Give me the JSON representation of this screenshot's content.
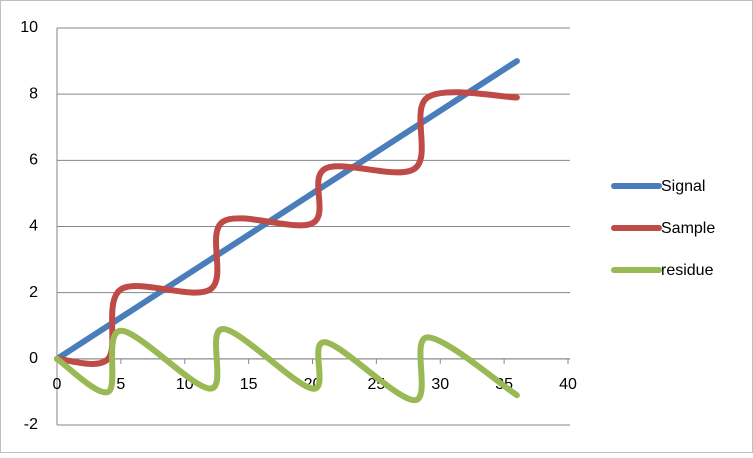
{
  "chart_data": {
    "type": "line",
    "smooth": true,
    "x": [
      0,
      4,
      5,
      12,
      13,
      20,
      21,
      28,
      29,
      36
    ],
    "series": [
      {
        "name": "Signal",
        "color": "#4a7ebb",
        "values": [
          0,
          1,
          1.25,
          3,
          3.25,
          5,
          5.25,
          7,
          7.25,
          9
        ]
      },
      {
        "name": "Sample",
        "color": "#be4b48",
        "values": [
          0,
          0,
          2.1,
          2.1,
          4.15,
          4.1,
          5.75,
          5.75,
          7.9,
          7.9
        ]
      },
      {
        "name": "residue",
        "color": "#98b954",
        "values": [
          0,
          -1,
          0.85,
          -0.9,
          0.9,
          -0.9,
          0.5,
          -1.25,
          0.65,
          -1.1
        ]
      }
    ],
    "xlim": [
      0,
      40
    ],
    "xticks": [
      0,
      5,
      10,
      15,
      20,
      25,
      30,
      35,
      40
    ],
    "ylim": [
      -2,
      10
    ],
    "yticks": [
      -2,
      0,
      2,
      4,
      6,
      8,
      10
    ],
    "grid": true,
    "legend": "right"
  }
}
